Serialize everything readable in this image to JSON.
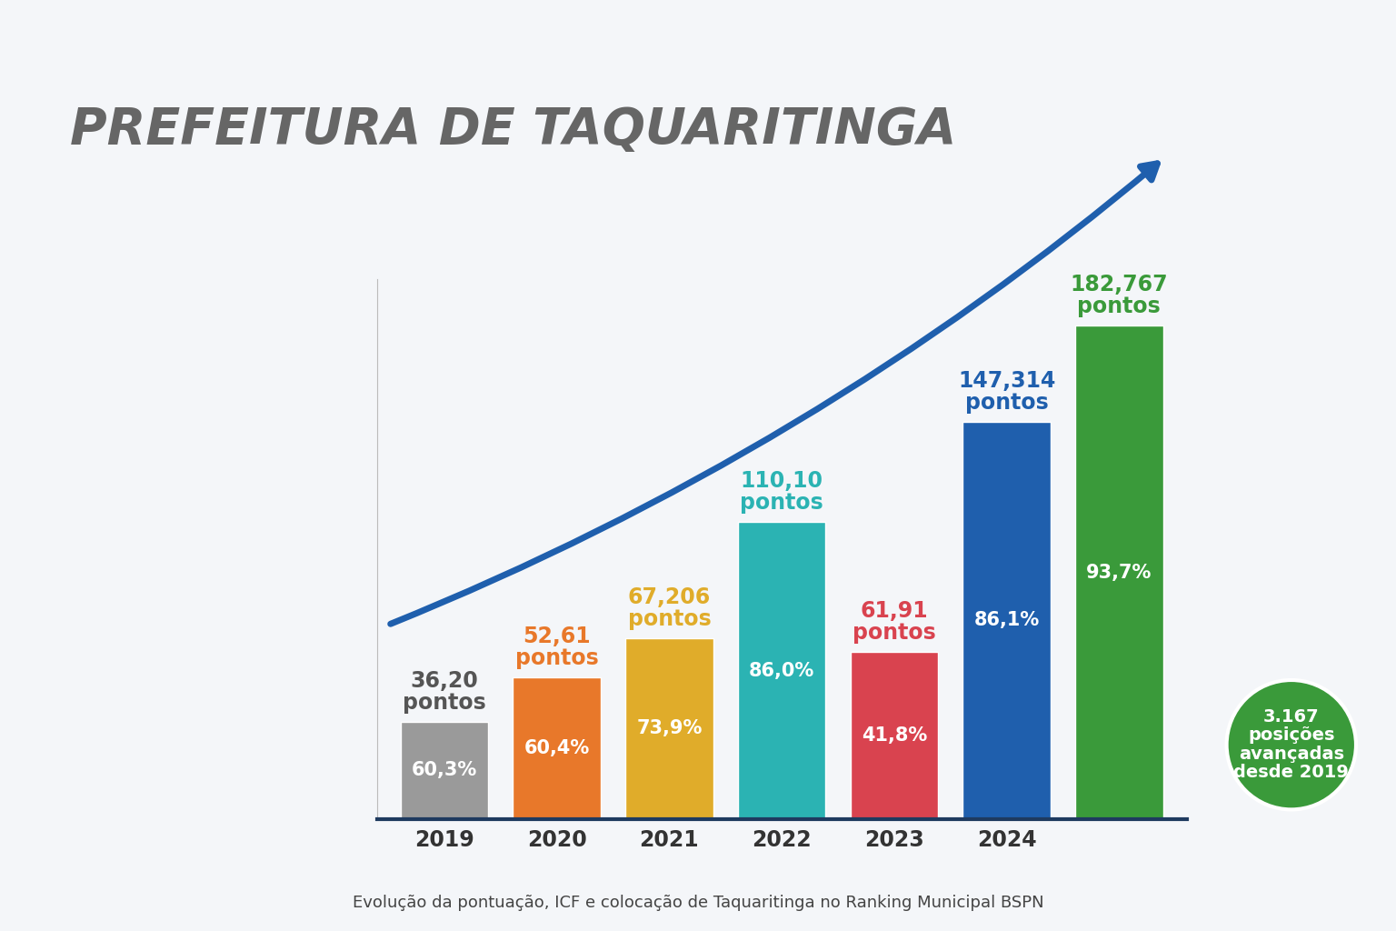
{
  "chart_data": {
    "type": "bar",
    "title": "Evolução da pontuação, ICF e colocação de Taquaritinga no Ranking Municipal BSPN",
    "categories": [
      "2019",
      "2020",
      "2021",
      "2022",
      "2023",
      "2024",
      null
    ],
    "values": [
      36.2,
      52.61,
      67.206,
      110.1,
      61.91,
      147.314,
      182.767
    ],
    "value_labels": [
      "36,20\npontos",
      "52,61\npontos",
      "67,206\npontos",
      "110,10\npontos",
      "61,91\npontos",
      "147,314\npontos",
      "182,767\npontos"
    ],
    "percent_values": [
      60.3,
      60.4,
      73.9,
      86.0,
      41.8,
      86.1,
      93.7
    ],
    "percent_labels": [
      "60,3%",
      "60,4%",
      "73,9%",
      "86,0%",
      "41,8%",
      "86,1%",
      "93,7%"
    ],
    "colors": [
      "#9a9a9a",
      "#e8782a",
      "#e0ac2a",
      "#2bb3b3",
      "#d9434f",
      "#1f5fad",
      "#3a9a3a"
    ],
    "annotations": [
      "PREFEITURA DE TAQUARITINGA",
      "3.167\nposições\navançadas\ndesde 2019"
    ],
    "ylim": [
      0,
      200
    ],
    "yticks": [],
    "grid": false,
    "data_labels": true,
    "tick_labels": "x"
  }
}
